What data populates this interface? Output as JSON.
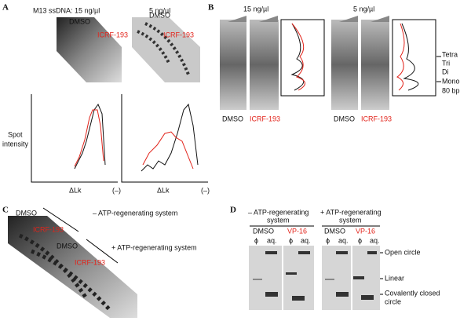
{
  "panel_a": {
    "letter": "A",
    "label_left": "M13 ssDNA: 15 ng/µl",
    "label_right": "5 ng/µl",
    "gel_labels": [
      "DMSO",
      "ICRF-193"
    ],
    "y_label": [
      "Spot",
      "intensity"
    ],
    "x_label": "ΔLk",
    "x_end": "(–)"
  },
  "panel_b": {
    "letter": "B",
    "label_left": "15 ng/µl",
    "label_right": "5 ng/µl",
    "markers": [
      "Tetra",
      "Tri",
      "Di",
      "Mono",
      "80 bp"
    ],
    "lanes": [
      "DMSO",
      "ICRF-193"
    ]
  },
  "panel_c": {
    "letter": "C",
    "upper": {
      "control": "DMSO",
      "condition": "– ATP-regenerating system",
      "drug": "ICRF-193"
    },
    "lower": {
      "control": "DMSO",
      "condition": "+ ATP-regenerating system",
      "drug": "ICRF-193"
    }
  },
  "panel_d": {
    "letter": "D",
    "groups": [
      {
        "title": [
          "– ATP-regenerating",
          "system"
        ]
      },
      {
        "title": [
          "+ ATP-regenerating",
          "system"
        ]
      }
    ],
    "treatments": [
      "DMSO",
      "VP-16"
    ],
    "lanes": [
      "ϕ",
      "aq."
    ],
    "bands": [
      "Open circle",
      "Linear",
      [
        "Covalently closed",
        "circle"
      ]
    ]
  }
}
